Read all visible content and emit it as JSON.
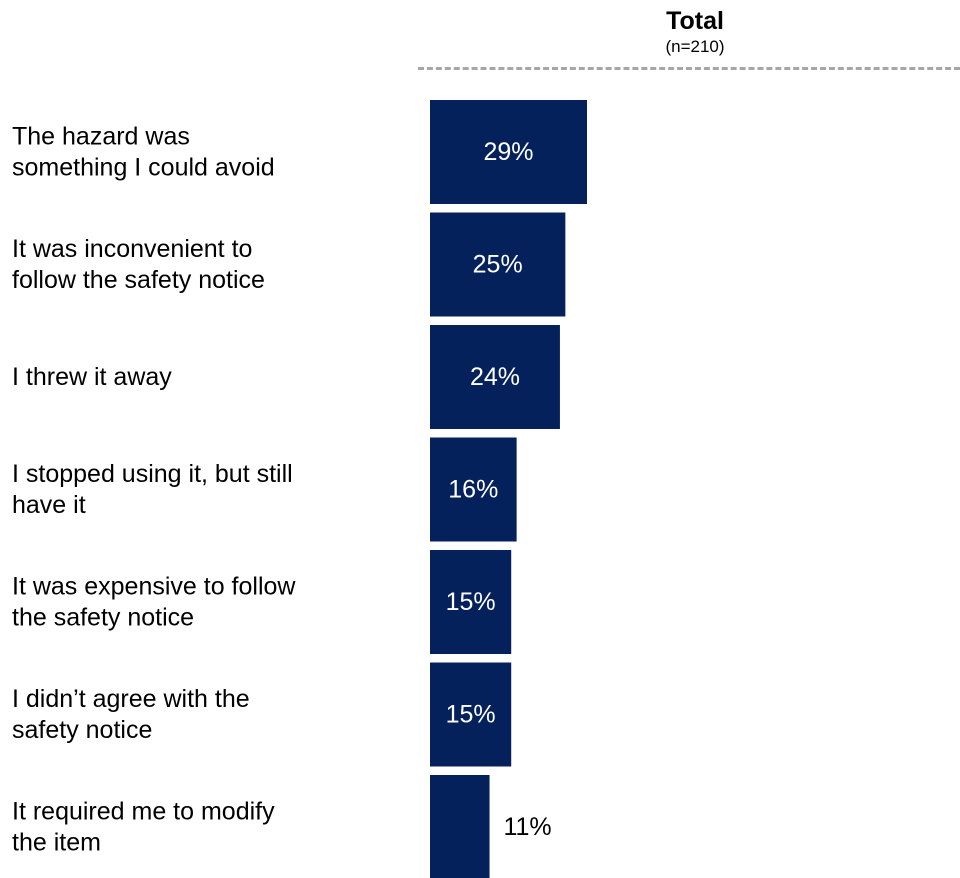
{
  "header": {
    "title": "Total",
    "subtitle": "(n=210)"
  },
  "colors": {
    "bar": "#04215c",
    "label_inside": "#ffffff",
    "label_outside": "#000000",
    "divider": "#a6a6a6"
  },
  "chart_data": {
    "type": "bar",
    "orientation": "horizontal",
    "title": "Total",
    "subtitle": "(n=210)",
    "categories": [
      [
        "The hazard was",
        "something I could avoid"
      ],
      [
        "It was inconvenient to",
        "follow the safety notice"
      ],
      [
        "I threw it away"
      ],
      [
        "I stopped using it, but still",
        "have it"
      ],
      [
        "It was expensive to follow",
        "the safety notice"
      ],
      [
        "I didn’t agree with the",
        "safety notice"
      ],
      [
        "It required me to modify",
        "the item"
      ]
    ],
    "values": [
      29,
      25,
      24,
      16,
      15,
      15,
      11
    ],
    "value_labels": [
      "29%",
      "25%",
      "24%",
      "16%",
      "15%",
      "15%",
      "11%"
    ],
    "xlim": [
      0,
      100
    ],
    "grid": false,
    "legend": "none"
  }
}
